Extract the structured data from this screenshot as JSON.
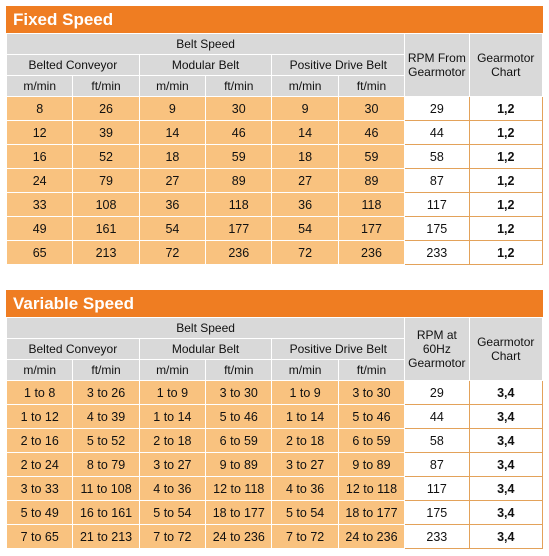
{
  "fixed": {
    "title": "Fixed Speed",
    "belt_speed_label": "Belt Speed",
    "rpm_label": "RPM From Gearmotor",
    "chart_label": "Gearmotor Chart",
    "groups": [
      "Belted Conveyor",
      "Modular Belt",
      "Positive Drive Belt"
    ],
    "units": [
      "m/min",
      "ft/min",
      "m/min",
      "ft/min",
      "m/min",
      "ft/min"
    ],
    "rows": [
      [
        "8",
        "26",
        "9",
        "30",
        "9",
        "30",
        "29",
        "1,2"
      ],
      [
        "12",
        "39",
        "14",
        "46",
        "14",
        "46",
        "44",
        "1,2"
      ],
      [
        "16",
        "52",
        "18",
        "59",
        "18",
        "59",
        "58",
        "1,2"
      ],
      [
        "24",
        "79",
        "27",
        "89",
        "27",
        "89",
        "87",
        "1,2"
      ],
      [
        "33",
        "108",
        "36",
        "118",
        "36",
        "118",
        "117",
        "1,2"
      ],
      [
        "49",
        "161",
        "54",
        "177",
        "54",
        "177",
        "175",
        "1,2"
      ],
      [
        "65",
        "213",
        "72",
        "236",
        "72",
        "236",
        "233",
        "1,2"
      ]
    ]
  },
  "variable": {
    "title": "Variable Speed",
    "belt_speed_label": "Belt Speed",
    "rpm_label": "RPM at 60Hz Gearmotor",
    "chart_label": "Gearmotor Chart",
    "groups": [
      "Belted Conveyor",
      "Modular Belt",
      "Positive Drive Belt"
    ],
    "units": [
      "m/min",
      "ft/min",
      "m/min",
      "ft/min",
      "m/min",
      "ft/min"
    ],
    "rows": [
      [
        "1 to 8",
        "3 to 26",
        "1 to 9",
        "3 to 30",
        "1 to 9",
        "3 to 30",
        "29",
        "3,4"
      ],
      [
        "1 to 12",
        "4 to 39",
        "1 to 14",
        "5 to 46",
        "1 to 14",
        "5 to 46",
        "44",
        "3,4"
      ],
      [
        "2 to 16",
        "5 to 52",
        "2 to 18",
        "6 to 59",
        "2 to 18",
        "6 to 59",
        "58",
        "3,4"
      ],
      [
        "2 to 24",
        "8 to 79",
        "3 to 27",
        "9 to 89",
        "3 to 27",
        "9 to 89",
        "87",
        "3,4"
      ],
      [
        "3 to 33",
        "11 to 108",
        "4 to 36",
        "12 to 118",
        "4 to 36",
        "12 to 118",
        "117",
        "3,4"
      ],
      [
        "5 to 49",
        "16 to 161",
        "5 to 54",
        "18 to 177",
        "5 to 54",
        "18 to 177",
        "175",
        "3,4"
      ],
      [
        "7 to 65",
        "21 to 213",
        "7 to 72",
        "24 to 236",
        "7 to 72",
        "24 to 236",
        "233",
        "3,4"
      ]
    ]
  }
}
